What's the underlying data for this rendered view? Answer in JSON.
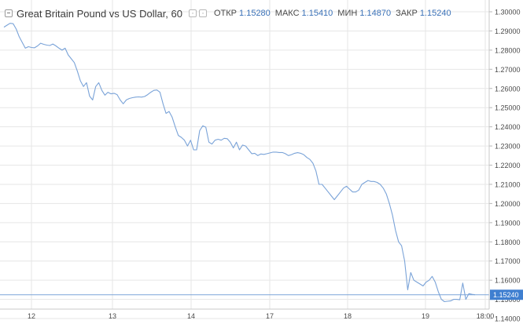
{
  "header": {
    "title": "Great Britain Pound vs US Dollar, 60",
    "ohlc": [
      {
        "label": "ОТКР",
        "value": "1.15280"
      },
      {
        "label": "МАКС",
        "value": "1.15410"
      },
      {
        "label": "МИН",
        "value": "1.14870"
      },
      {
        "label": "ЗАКР",
        "value": "1.15240"
      }
    ]
  },
  "colors": {
    "line": "#7aa3d8",
    "price_tag": "#3f7fd0",
    "grid": "#e6e6e6",
    "axis_text": "#4a4a4a",
    "value_text": "#3b72b8"
  },
  "chart_data": {
    "type": "line",
    "title": "Great Britain Pound vs US Dollar, 60",
    "xlabel": "",
    "ylabel": "",
    "x_tick_labels": [
      "12",
      "13",
      "14",
      "17",
      "18",
      "19",
      "18:00"
    ],
    "y_tick_labels": [
      "1.30000",
      "1.29000",
      "1.28000",
      "1.27000",
      "1.26000",
      "1.25000",
      "1.24000",
      "1.23000",
      "1.22000",
      "1.21000",
      "1.20000",
      "1.19000",
      "1.18000",
      "1.17000",
      "1.16000",
      "1.15000",
      "1.14000"
    ],
    "ylim": [
      1.1365,
      1.3045
    ],
    "grid": true,
    "current_price": 1.1524,
    "current_price_label": "1.15240",
    "series": [
      {
        "values": [
          1.292,
          1.293,
          1.294,
          1.2938,
          1.291,
          1.287,
          1.284,
          1.281,
          1.2818,
          1.2814,
          1.2812,
          1.2822,
          1.2836,
          1.283,
          1.2826,
          1.2824,
          1.2832,
          1.2822,
          1.281,
          1.28,
          1.281,
          1.2775,
          1.2755,
          1.2735,
          1.269,
          1.264,
          1.261,
          1.263,
          1.256,
          1.254,
          1.261,
          1.263,
          1.259,
          1.2565,
          1.258,
          1.2572,
          1.2575,
          1.2568,
          1.254,
          1.252,
          1.254,
          1.2548,
          1.2552,
          1.2555,
          1.2556,
          1.2555,
          1.2558,
          1.2568,
          1.258,
          1.259,
          1.2592,
          1.258,
          1.252,
          1.247,
          1.248,
          1.245,
          1.24,
          1.2355,
          1.2345,
          1.233,
          1.23,
          1.233,
          1.228,
          1.228,
          1.238,
          1.2405,
          1.2398,
          1.232,
          1.231,
          1.233,
          1.2335,
          1.233,
          1.234,
          1.2338,
          1.232,
          1.229,
          1.232,
          1.228,
          1.2305,
          1.23,
          1.228,
          1.226,
          1.2262,
          1.225,
          1.2258,
          1.2256,
          1.226,
          1.2264,
          1.2268,
          1.2268,
          1.2266,
          1.2266,
          1.226,
          1.225,
          1.2255,
          1.2262,
          1.2265,
          1.2262,
          1.2255,
          1.224,
          1.223,
          1.221,
          1.217,
          1.21,
          1.21,
          1.208,
          1.206,
          1.204,
          1.202,
          1.204,
          1.206,
          1.208,
          1.209,
          1.2075,
          1.206,
          1.206,
          1.207,
          1.21,
          1.211,
          1.212,
          1.2115,
          1.2115,
          1.211,
          1.21,
          1.208,
          1.205,
          1.2,
          1.194,
          1.186,
          1.18,
          1.178,
          1.17,
          1.155,
          1.164,
          1.16,
          1.159,
          1.158,
          1.157,
          1.159,
          1.16,
          1.162,
          1.159,
          1.154,
          1.15,
          1.1488,
          1.149,
          1.1492,
          1.15,
          1.15,
          1.1498,
          1.1585,
          1.15,
          1.153,
          1.1526,
          1.1524
        ]
      }
    ]
  }
}
